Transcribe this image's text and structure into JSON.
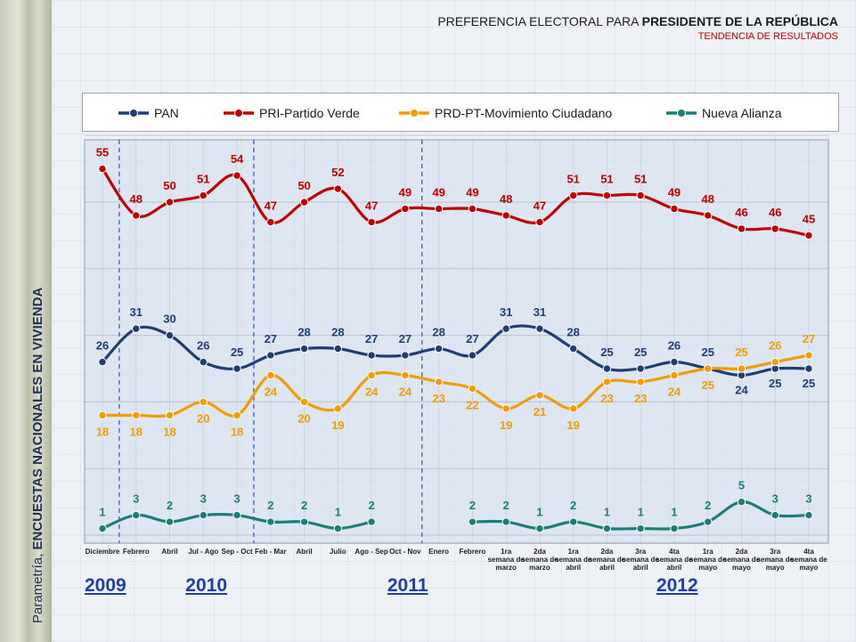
{
  "header": {
    "title_plain": "PREFERENCIA ELECTORAL PARA ",
    "title_bold": "PRESIDENTE DE LA REPÚBLICA",
    "subtitle": "TENDENCIA DE RESULTADOS"
  },
  "side_label": {
    "plain": "Parametría, ",
    "bold": "ENCUESTAS NACIONALES EN VIVIENDA"
  },
  "chart_data": {
    "type": "line",
    "categories": [
      [
        "Diciembre"
      ],
      [
        "Febrero"
      ],
      [
        "Abril"
      ],
      [
        "Jul - Ago"
      ],
      [
        "Sep - Oct"
      ],
      [
        "Feb - Mar"
      ],
      [
        "Abril"
      ],
      [
        "Julio"
      ],
      [
        "Ago - Sep"
      ],
      [
        "Oct - Nov"
      ],
      [
        "Enero"
      ],
      [
        "Febrero"
      ],
      [
        "1ra",
        "semana de",
        "marzo"
      ],
      [
        "2da",
        "semana de",
        "marzo"
      ],
      [
        "1ra",
        "semana de",
        "abril"
      ],
      [
        "2da",
        "semana de",
        "abril"
      ],
      [
        "3ra",
        "semana de",
        "abril"
      ],
      [
        "4ta",
        "semana de",
        "abril"
      ],
      [
        "1ra",
        "semana de",
        "mayo"
      ],
      [
        "2da",
        "semana de",
        "mayo"
      ],
      [
        "3ra",
        "semana de",
        "mayo"
      ],
      [
        "4ta",
        "semana de",
        "mayo"
      ]
    ],
    "years": [
      {
        "label": "2009",
        "at_index": 0
      },
      {
        "label": "2010",
        "at_index": 3
      },
      {
        "label": "2011",
        "at_index": 9
      },
      {
        "label": "2012",
        "at_index": 17
      }
    ],
    "year_dividers_after_index": [
      0,
      4,
      9
    ],
    "y_range": [
      0,
      60
    ],
    "series": [
      {
        "name": "PRI-Partido Verde",
        "color": "#c00000",
        "values": [
          55,
          48,
          50,
          51,
          54,
          47,
          50,
          52,
          47,
          49,
          49,
          49,
          48,
          47,
          51,
          51,
          51,
          49,
          48,
          46,
          46,
          45
        ],
        "label_position": "above"
      },
      {
        "name": "PAN",
        "color": "#1f3e74",
        "values": [
          26,
          31,
          30,
          26,
          25,
          27,
          28,
          28,
          27,
          27,
          28,
          27,
          31,
          31,
          28,
          25,
          25,
          26,
          25,
          24,
          25,
          25
        ],
        "label_position": "above_then_below_from_19"
      },
      {
        "name": "PRD-PT-Movimiento Ciudadano",
        "color": "#f29c00",
        "values": [
          18,
          18,
          18,
          20,
          18,
          24,
          20,
          19,
          24,
          24,
          23,
          22,
          19,
          21,
          19,
          23,
          23,
          24,
          25,
          25,
          26,
          27
        ],
        "label_position": "below_then_above_from_19"
      },
      {
        "name": "Nueva Alianza",
        "color": "#1a7f7a",
        "values": [
          1,
          3,
          2,
          3,
          3,
          2,
          2,
          1,
          2,
          null,
          null,
          2,
          2,
          1,
          2,
          1,
          1,
          1,
          2,
          5,
          3,
          3
        ],
        "label_position": "above"
      }
    ],
    "legend_order": [
      "PAN",
      "PRI-Partido Verde",
      "PRD-PT-Movimiento Ciudadano",
      "Nueva Alianza"
    ],
    "legend_placement": "top",
    "grid": true
  }
}
